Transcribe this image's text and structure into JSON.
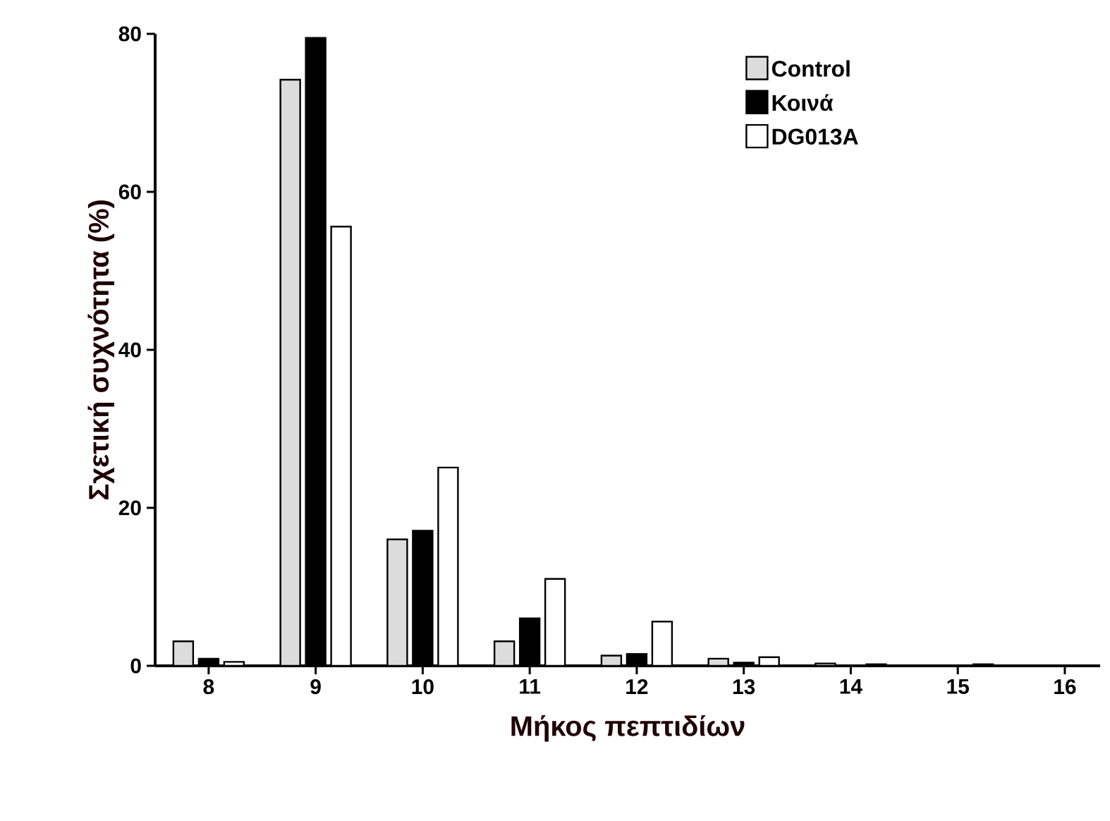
{
  "chart_data": {
    "type": "bar",
    "xlabel": "Μήκος πεπτιδίων",
    "ylabel": "Σχετική συχνότητα (%)",
    "categories": [
      "8",
      "9",
      "10",
      "11",
      "12",
      "13",
      "14",
      "15",
      "16"
    ],
    "series": [
      {
        "name": "Control",
        "color": "#dcdcdc",
        "values": [
          3.1,
          74.2,
          16.0,
          3.1,
          1.3,
          0.9,
          0.3,
          null,
          null
        ]
      },
      {
        "name": "Κοινά",
        "color": "#000000",
        "values": [
          0.9,
          79.5,
          17.1,
          6.0,
          1.5,
          0.4,
          null,
          null,
          null
        ]
      },
      {
        "name": "DG013A",
        "color": "#ffffff",
        "values": [
          0.5,
          55.6,
          25.1,
          11.0,
          5.6,
          1.1,
          0.2,
          0.2,
          null
        ]
      }
    ],
    "ylim": [
      0,
      80
    ],
    "yticks": [
      0,
      20,
      40,
      60,
      80
    ],
    "grid": false,
    "legend": "top right"
  }
}
